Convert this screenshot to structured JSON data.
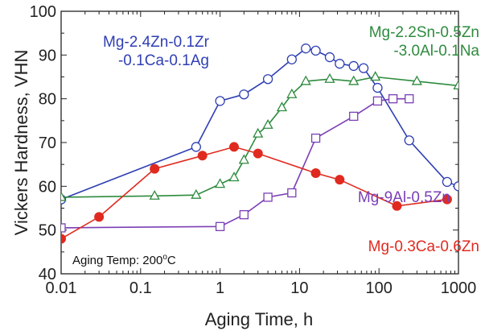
{
  "chart_data": {
    "type": "line",
    "xlabel": "Aging Time, h",
    "ylabel": "Vickers Hardness, VHN",
    "xscale": "log",
    "xlim": [
      0.01,
      1000
    ],
    "ylim": [
      40,
      100
    ],
    "xticks": [
      0.01,
      0.1,
      1,
      10,
      100,
      1000
    ],
    "xtick_labels": [
      "0.01",
      "0.1",
      "1",
      "10",
      "100",
      "1000"
    ],
    "yticks": [
      40,
      50,
      60,
      70,
      80,
      90,
      100
    ],
    "ytick_labels": [
      "40",
      "50",
      "60",
      "70",
      "80",
      "90",
      "100"
    ],
    "grid": false,
    "legend": "none",
    "annotation": {
      "prefix": "Aging Temp: 200",
      "superscript": "o",
      "suffix": "C"
    },
    "series": [
      {
        "name": "Mg-2.4Zn-0.1Zr -0.1Ca-0.1Ag",
        "label_lines": [
          "Mg-2.4Zn-0.1Zr",
          "-0.1Ca-0.1Ag"
        ],
        "color": "#2f3fb3",
        "marker": "circle-open",
        "x": [
          0.01,
          0.5,
          1,
          2,
          4,
          8,
          12,
          16,
          24,
          32,
          48,
          64,
          96,
          240,
          720,
          1000
        ],
        "y": [
          57,
          69,
          79.5,
          81,
          84.5,
          89,
          91.5,
          91,
          89.5,
          88,
          87.5,
          87,
          82.5,
          70.5,
          61,
          60
        ]
      },
      {
        "name": "Mg-2.2Sn-0.5Zn -3.0Al-0.1Na",
        "label_lines": [
          "Mg-2.2Sn-0.5Zn",
          "-3.0Al-0.1Na"
        ],
        "color": "#2e8b3e",
        "marker": "triangle-open",
        "x": [
          0.01,
          0.15,
          0.5,
          1,
          1.5,
          2,
          3,
          4,
          6,
          8,
          12,
          24,
          48,
          90,
          300,
          1000
        ],
        "y": [
          57.5,
          57.8,
          58,
          60.5,
          62,
          66,
          72,
          74,
          78,
          81,
          84,
          84.5,
          84,
          85,
          84,
          83
        ]
      },
      {
        "name": "Mg-9Al-0.5Zn",
        "label_lines": [
          "Mg-9Al-0.5Zn"
        ],
        "color": "#7b3fb5",
        "marker": "square-open",
        "x": [
          0.01,
          1,
          2,
          4,
          8,
          16,
          48,
          96,
          150,
          240
        ],
        "y": [
          50.5,
          50.8,
          53.5,
          57.5,
          58.5,
          71,
          76,
          79.5,
          80,
          80
        ]
      },
      {
        "name": "Mg-0.3Ca-0.6Zn",
        "label_lines": [
          "Mg-0.3Ca-0.6Zn"
        ],
        "color": "#e02a1f",
        "marker": "circle-filled",
        "x": [
          0.01,
          0.03,
          0.15,
          0.6,
          1.5,
          3,
          16,
          32,
          168,
          720
        ],
        "y": [
          48,
          53,
          64,
          67,
          69,
          67.5,
          63,
          61.5,
          55.5,
          57
        ]
      }
    ]
  }
}
